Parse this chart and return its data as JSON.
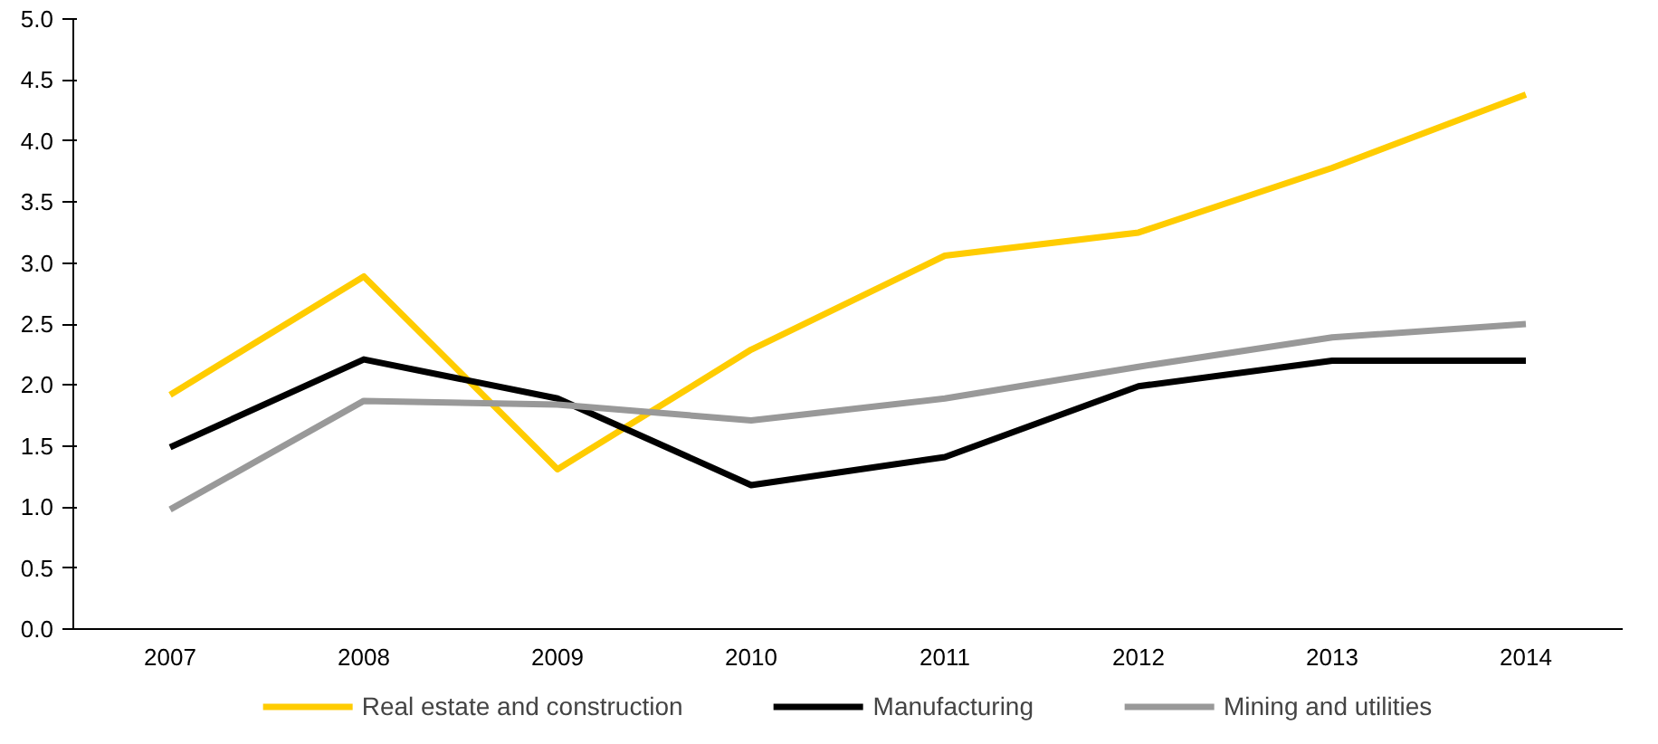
{
  "chart_data": {
    "type": "line",
    "categories": [
      "2007",
      "2008",
      "2009",
      "2010",
      "2011",
      "2012",
      "2013",
      "2014"
    ],
    "series": [
      {
        "name": "Real estate and construction",
        "color": "#ffcc00",
        "values": [
          1.92,
          2.89,
          1.31,
          2.29,
          3.06,
          3.25,
          3.78,
          4.38
        ]
      },
      {
        "name": "Manufacturing",
        "color": "#000000",
        "values": [
          1.49,
          2.21,
          1.89,
          1.18,
          1.41,
          1.99,
          2.2,
          2.2
        ]
      },
      {
        "name": "Mining and utilities",
        "color": "#999999",
        "values": [
          0.98,
          1.87,
          1.84,
          1.71,
          1.89,
          2.15,
          2.39,
          2.5
        ]
      }
    ],
    "ylim": [
      0,
      5
    ],
    "yticks": [
      {
        "value": 0,
        "label": "0.0"
      },
      {
        "value": 0.5,
        "label": "0.5"
      },
      {
        "value": 1,
        "label": "1.0"
      },
      {
        "value": 1.5,
        "label": "1.5"
      },
      {
        "value": 2,
        "label": "2.0"
      },
      {
        "value": 2.5,
        "label": "2.5"
      },
      {
        "value": 3,
        "label": "3.0"
      },
      {
        "value": 3.5,
        "label": "3.5"
      },
      {
        "value": 4,
        "label": "4.0"
      },
      {
        "value": 4.5,
        "label": "4.5"
      },
      {
        "value": 5,
        "label": "5.0"
      }
    ],
    "grid": false,
    "legend": "bottom",
    "marker": "none",
    "line_style": "solid"
  }
}
